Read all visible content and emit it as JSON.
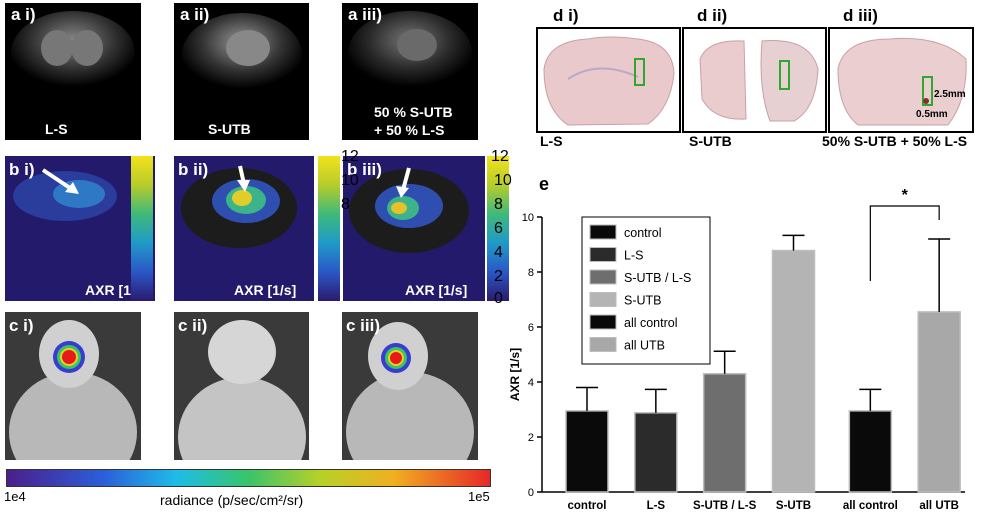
{
  "panel_a": {
    "labels": [
      "a i)",
      "a ii)",
      "a iii)"
    ],
    "captions": [
      "L-S",
      "S-UTB",
      "50 % S-UTB\n+ 50 % L-S"
    ]
  },
  "panel_b": {
    "labels": [
      "b i)",
      "b ii)",
      "b iii)"
    ],
    "axr_label": "AXR [1/s]",
    "colorbar_ticks": [
      "12",
      "10",
      "8",
      "6",
      "4",
      "2",
      "0"
    ]
  },
  "panel_c": {
    "labels": [
      "c i)",
      "c ii)",
      "c iii)"
    ]
  },
  "radiance_bar": {
    "min": "1e4",
    "max": "1e5",
    "label": "radiance (p/sec/cm²/sr)"
  },
  "panel_d": {
    "labels": [
      "d i)",
      "d ii)",
      "d iii)"
    ],
    "captions": [
      "L-S",
      "S-UTB",
      "50% S-UTB + 50% L-S"
    ],
    "scale_2": "2.5mm",
    "scale_1": "0.5mm"
  },
  "panel_e": {
    "label": "e",
    "significance": "*"
  },
  "chart_data": {
    "type": "bar",
    "categories": [
      "control",
      "L-S",
      "S-UTB / L-S",
      "S-UTB",
      "all control",
      "all UTB"
    ],
    "values": [
      2.95,
      2.88,
      4.3,
      8.78,
      2.95,
      6.55
    ],
    "errors": [
      0.85,
      0.85,
      0.82,
      0.55,
      0.78,
      2.65
    ],
    "colors": [
      "#0a0a0a",
      "#2b2b2b",
      "#6e6e6e",
      "#b4b4b4",
      "#0a0a0a",
      "#a8a8a8"
    ],
    "legend": [
      "control",
      "L-S",
      "S-UTB / L-S",
      "S-UTB",
      "all control",
      "all UTB"
    ],
    "ylabel": "AXR [1/s]",
    "xlabel": "",
    "ylim": [
      0,
      10
    ],
    "yticks": [
      "0",
      "2",
      "4",
      "6",
      "8",
      "10"
    ],
    "legend_position": "top-left",
    "grid": false
  }
}
